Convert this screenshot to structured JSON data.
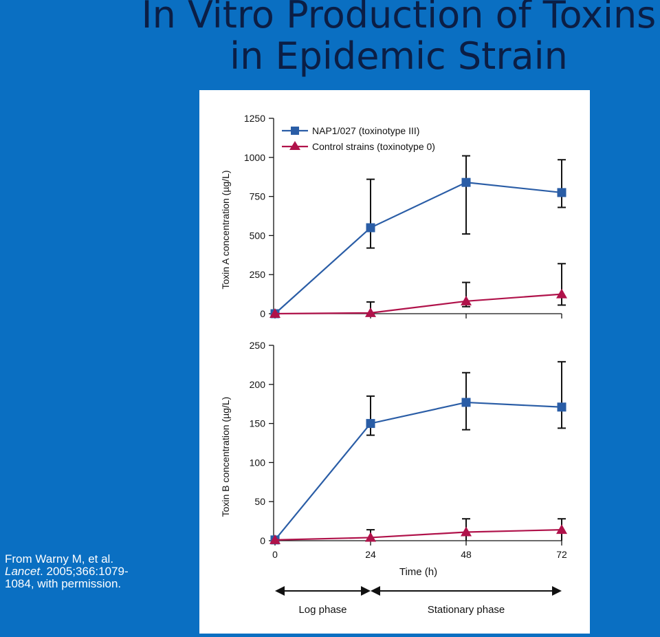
{
  "slide": {
    "title_line1": "In Vitro Production of Toxins",
    "title_line2": "in Epidemic Strain"
  },
  "citation": {
    "line1": "From Warny M, et al.",
    "journal": "Lancet",
    "line2_rest": ". 2005;366:1079-",
    "line3": "1084, with permission."
  },
  "colors": {
    "background": "#0a6fc2",
    "series_nap1": "#2a5da6",
    "series_control": "#b0124a"
  },
  "chart_data": [
    {
      "type": "line",
      "ylabel": "Toxin A concentration (µg/L)",
      "ylim": [
        0,
        1250
      ],
      "yticks": [
        0,
        250,
        500,
        750,
        1000,
        1250
      ],
      "x": [
        0,
        24,
        48,
        72
      ],
      "legend_placement": "top-left",
      "series": [
        {
          "name": "NAP1/027 (toxinotype III)",
          "marker": "square",
          "values": [
            0,
            550,
            840,
            775
          ],
          "err_low": [
            0,
            420,
            510,
            680
          ],
          "err_high": [
            0,
            860,
            1010,
            985
          ]
        },
        {
          "name": "Control strains (toxinotype 0)",
          "marker": "triangle",
          "values": [
            0,
            5,
            80,
            125
          ],
          "err_low": [
            0,
            0,
            45,
            55
          ],
          "err_high": [
            0,
            75,
            200,
            320
          ]
        }
      ]
    },
    {
      "type": "line",
      "ylabel": "Toxin B concentration (µg/L)",
      "xlabel": "Time (h)",
      "ylim": [
        0,
        250
      ],
      "yticks": [
        0,
        50,
        100,
        150,
        200,
        250
      ],
      "x": [
        0,
        24,
        48,
        72
      ],
      "xticks": [
        "0",
        "24",
        "48",
        "72"
      ],
      "series": [
        {
          "name": "NAP1/027 (toxinotype III)",
          "marker": "square",
          "values": [
            1,
            150,
            177,
            171
          ],
          "err_low": [
            1,
            135,
            142,
            144
          ],
          "err_high": [
            1,
            185,
            215,
            229
          ]
        },
        {
          "name": "Control strains (toxinotype 0)",
          "marker": "triangle",
          "values": [
            1,
            4,
            11,
            14
          ],
          "err_low": [
            1,
            0,
            0,
            0
          ],
          "err_high": [
            1,
            14,
            28,
            28
          ]
        }
      ],
      "phases": [
        {
          "label": "Log phase",
          "from": 0,
          "to": 24
        },
        {
          "label": "Stationary phase",
          "from": 24,
          "to": 72
        }
      ]
    }
  ]
}
